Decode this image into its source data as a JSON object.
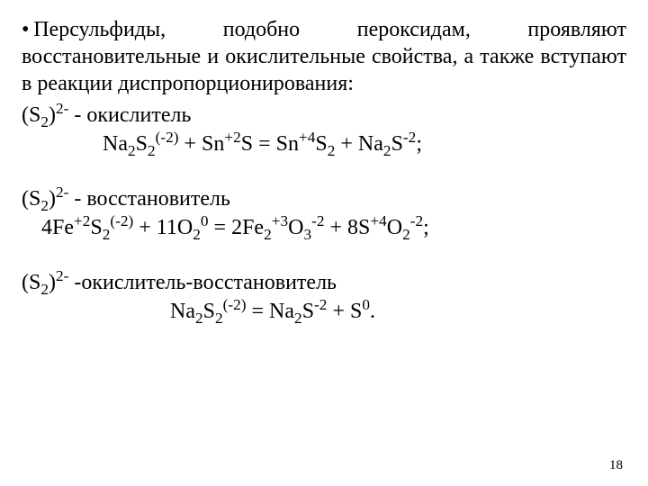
{
  "paragraph": "• Персульфиды, подобно пероксидам, проявляют восстановительные и окислительные свойства, а также вступают в реакции диспропорционирования:",
  "sec1": {
    "label_pre": "(S",
    "label_sub1": "2",
    "label_mid": ")",
    "label_sup1": "2-",
    "label_post": " - окислитель",
    "eq": {
      "t1": "Na",
      "s1": "2",
      "t2": "S",
      "s2": "2",
      "p1": "(-2)",
      "t3": " + Sn",
      "p2": "+2",
      "t4": "S = Sn",
      "p3": "+4",
      "t5": "S",
      "s3": "2",
      "t6": " + Na",
      "s4": "2",
      "t7": "S",
      "p4": "-2",
      "t8": ";"
    }
  },
  "sec2": {
    "label_pre": "(S",
    "label_sub1": "2",
    "label_mid": ")",
    "label_sup1": "2-",
    "label_post": " - восстановитель",
    "eq": {
      "t1": "4Fe",
      "p1": "+2",
      "t2": "S",
      "s1": "2",
      "p2": "(-2)",
      "t3": "  +  11O",
      "s2": "2",
      "p3": "0",
      "t4": " =  2Fe",
      "s3": "2",
      "p4": "+3",
      "t5": "O",
      "s4": "3",
      "p5": "-2",
      "t6": " +  8S",
      "p6": "+4",
      "t7": "O",
      "s5": "2",
      "p7": "-2",
      "t8": ";"
    }
  },
  "sec3": {
    "label_pre": "(S",
    "label_sub1": "2",
    "label_mid": ")",
    "label_sup1": "2-",
    "label_post": " -окислитель-восстановитель",
    "eq": {
      "t1": "Na",
      "s1": "2",
      "t2": "S",
      "s2": "2",
      "p1": "(-2)",
      "t3": "  =  Na",
      "s3": "2",
      "t4": "S",
      "p2": "-2",
      "t5": " + S",
      "p3": "0",
      "t6": "."
    }
  },
  "pageNumber": "18"
}
